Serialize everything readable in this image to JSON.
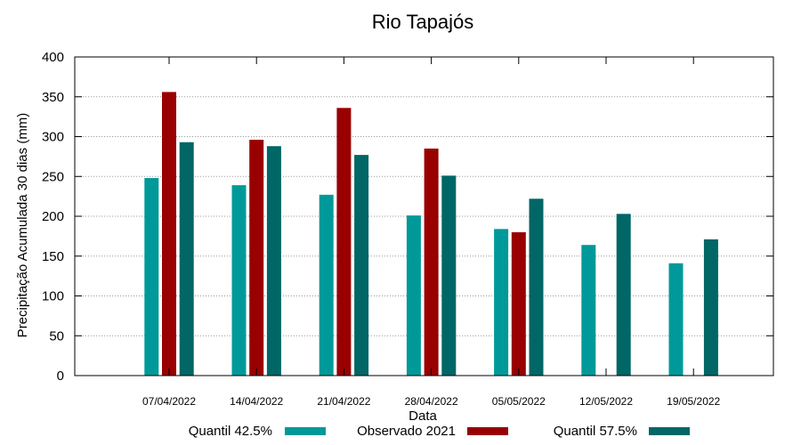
{
  "chart_data": {
    "type": "bar",
    "title": "Rio Tapajós",
    "xlabel": "Data",
    "ylabel": "Precipitação Acumulada 30 dias (mm)",
    "ylim": [
      0,
      400
    ],
    "yticks": [
      0,
      50,
      100,
      150,
      200,
      250,
      300,
      350,
      400
    ],
    "grid": true,
    "legend_position": "bottom",
    "categories": [
      "07/04/2022",
      "14/04/2022",
      "21/04/2022",
      "28/04/2022",
      "05/05/2022",
      "12/05/2022",
      "19/05/2022"
    ],
    "series": [
      {
        "name": "Quantil 42.5%",
        "color": "#009999",
        "values": [
          248,
          239,
          227,
          201,
          184,
          164,
          141
        ]
      },
      {
        "name": "Observado 2021",
        "color": "#990000",
        "values": [
          356,
          296,
          336,
          285,
          180,
          null,
          null
        ]
      },
      {
        "name": "Quantil 57.5%",
        "color": "#006666",
        "values": [
          293,
          288,
          277,
          251,
          222,
          203,
          171
        ]
      }
    ]
  }
}
